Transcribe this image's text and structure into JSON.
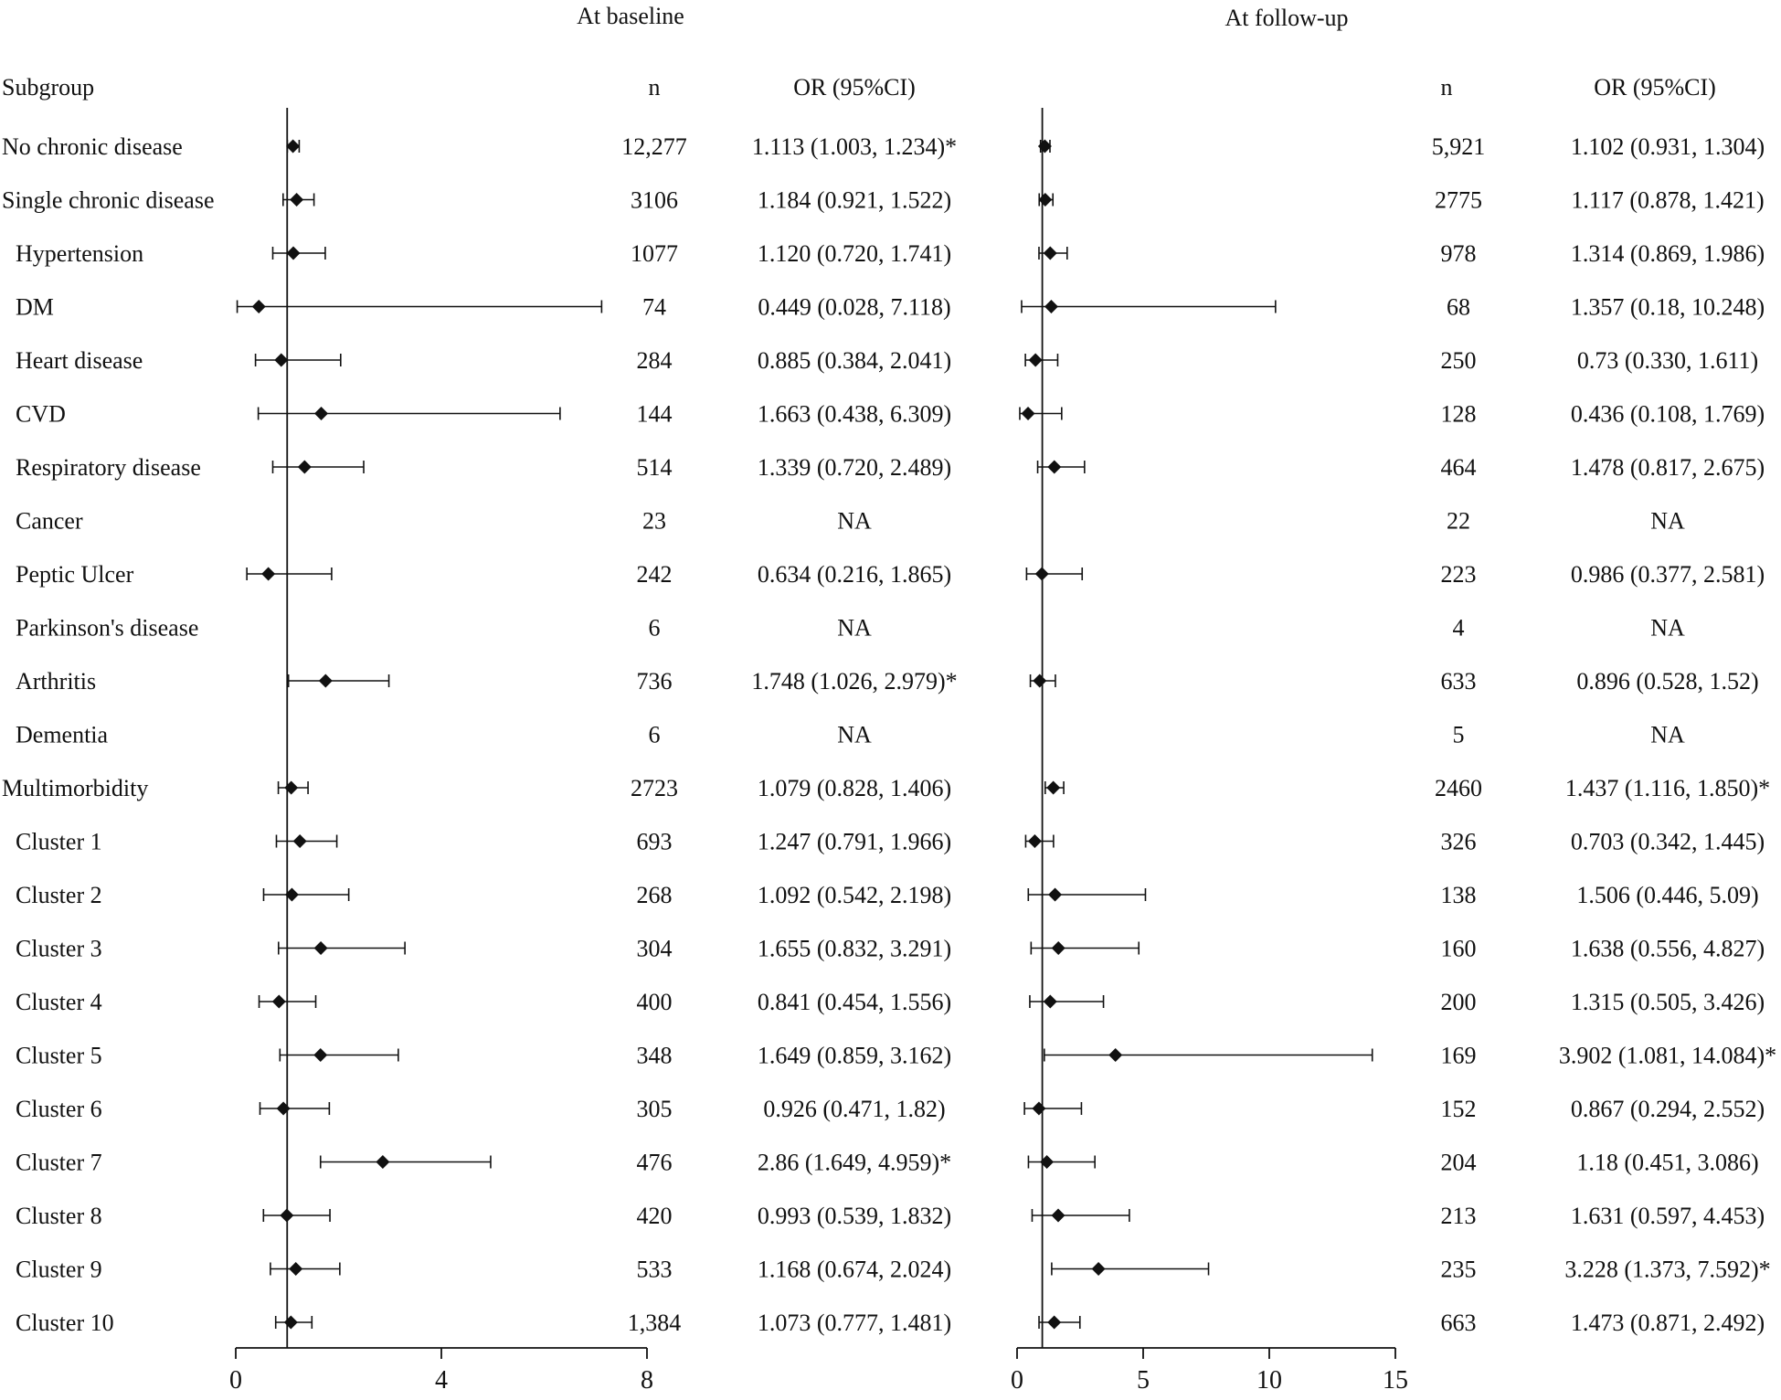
{
  "chart_data": {
    "type": "forest",
    "panels": [
      {
        "title": "At baseline",
        "n_header": "n",
        "or_header": "OR (95%CI)",
        "xlim": [
          0,
          8
        ],
        "ticks": [
          0,
          4,
          8
        ],
        "ref_line": 1
      },
      {
        "title": "At follow-up",
        "n_header": "n",
        "or_header": "OR (95%CI)",
        "xlim": [
          0,
          15
        ],
        "ticks": [
          0,
          5,
          10,
          15
        ],
        "ref_line": 1
      }
    ],
    "subgroup_header": "Subgroup",
    "rows": [
      {
        "label": "No chronic disease",
        "indent": false,
        "baseline": {
          "n": "12,277",
          "or_text": "1.113 (1.003, 1.234)*",
          "or": 1.113,
          "lo": 1.003,
          "hi": 1.234
        },
        "followup": {
          "n": "5,921",
          "or_text": "1.102 (0.931, 1.304)",
          "or": 1.102,
          "lo": 0.931,
          "hi": 1.304
        }
      },
      {
        "label": "Single chronic disease",
        "indent": false,
        "baseline": {
          "n": "3106",
          "or_text": "1.184 (0.921, 1.522)",
          "or": 1.184,
          "lo": 0.921,
          "hi": 1.522
        },
        "followup": {
          "n": "2775",
          "or_text": "1.117 (0.878, 1.421)",
          "or": 1.117,
          "lo": 0.878,
          "hi": 1.421
        }
      },
      {
        "label": "Hypertension",
        "indent": true,
        "baseline": {
          "n": "1077",
          "or_text": "1.120 (0.720, 1.741)",
          "or": 1.12,
          "lo": 0.72,
          "hi": 1.741
        },
        "followup": {
          "n": "978",
          "or_text": "1.314 (0.869, 1.986)",
          "or": 1.314,
          "lo": 0.869,
          "hi": 1.986
        }
      },
      {
        "label": "DM",
        "indent": true,
        "baseline": {
          "n": "74",
          "or_text": "0.449 (0.028, 7.118)",
          "or": 0.449,
          "lo": 0.028,
          "hi": 7.118
        },
        "followup": {
          "n": "68",
          "or_text": "1.357 (0.18, 10.248)",
          "or": 1.357,
          "lo": 0.18,
          "hi": 10.248
        }
      },
      {
        "label": "Heart disease",
        "indent": true,
        "baseline": {
          "n": "284",
          "or_text": "0.885 (0.384, 2.041)",
          "or": 0.885,
          "lo": 0.384,
          "hi": 2.041
        },
        "followup": {
          "n": "250",
          "or_text": "0.73 (0.330, 1.611)",
          "or": 0.73,
          "lo": 0.33,
          "hi": 1.611
        }
      },
      {
        "label": "CVD",
        "indent": true,
        "baseline": {
          "n": "144",
          "or_text": "1.663 (0.438, 6.309)",
          "or": 1.663,
          "lo": 0.438,
          "hi": 6.309
        },
        "followup": {
          "n": "128",
          "or_text": "0.436 (0.108, 1.769)",
          "or": 0.436,
          "lo": 0.108,
          "hi": 1.769
        }
      },
      {
        "label": "Respiratory disease",
        "indent": true,
        "baseline": {
          "n": "514",
          "or_text": "1.339 (0.720, 2.489)",
          "or": 1.339,
          "lo": 0.72,
          "hi": 2.489
        },
        "followup": {
          "n": "464",
          "or_text": "1.478 (0.817, 2.675)",
          "or": 1.478,
          "lo": 0.817,
          "hi": 2.675
        }
      },
      {
        "label": "Cancer",
        "indent": true,
        "baseline": {
          "n": "23",
          "or_text": "NA",
          "or": null,
          "lo": null,
          "hi": null
        },
        "followup": {
          "n": "22",
          "or_text": "NA",
          "or": null,
          "lo": null,
          "hi": null
        }
      },
      {
        "label": "Peptic Ulcer",
        "indent": true,
        "baseline": {
          "n": "242",
          "or_text": "0.634 (0.216, 1.865)",
          "or": 0.634,
          "lo": 0.216,
          "hi": 1.865
        },
        "followup": {
          "n": "223",
          "or_text": "0.986 (0.377, 2.581)",
          "or": 0.986,
          "lo": 0.377,
          "hi": 2.581
        }
      },
      {
        "label": "Parkinson's disease",
        "indent": true,
        "baseline": {
          "n": "6",
          "or_text": "NA",
          "or": null,
          "lo": null,
          "hi": null
        },
        "followup": {
          "n": "4",
          "or_text": "NA",
          "or": null,
          "lo": null,
          "hi": null
        }
      },
      {
        "label": "Arthritis",
        "indent": true,
        "baseline": {
          "n": "736",
          "or_text": "1.748 (1.026, 2.979)*",
          "or": 1.748,
          "lo": 1.026,
          "hi": 2.979
        },
        "followup": {
          "n": "633",
          "or_text": "0.896 (0.528, 1.52)",
          "or": 0.896,
          "lo": 0.528,
          "hi": 1.52
        }
      },
      {
        "label": "Dementia",
        "indent": true,
        "baseline": {
          "n": "6",
          "or_text": "NA",
          "or": null,
          "lo": null,
          "hi": null
        },
        "followup": {
          "n": "5",
          "or_text": "NA",
          "or": null,
          "lo": null,
          "hi": null
        }
      },
      {
        "label": "Multimorbidity",
        "indent": false,
        "baseline": {
          "n": "2723",
          "or_text": "1.079 (0.828, 1.406)",
          "or": 1.079,
          "lo": 0.828,
          "hi": 1.406
        },
        "followup": {
          "n": "2460",
          "or_text": "1.437 (1.116, 1.850)*",
          "or": 1.437,
          "lo": 1.116,
          "hi": 1.85
        }
      },
      {
        "label": "Cluster 1",
        "indent": true,
        "baseline": {
          "n": "693",
          "or_text": "1.247 (0.791, 1.966)",
          "or": 1.247,
          "lo": 0.791,
          "hi": 1.966
        },
        "followup": {
          "n": "326",
          "or_text": "0.703 (0.342, 1.445)",
          "or": 0.703,
          "lo": 0.342,
          "hi": 1.445
        }
      },
      {
        "label": "Cluster 2",
        "indent": true,
        "baseline": {
          "n": "268",
          "or_text": "1.092 (0.542, 2.198)",
          "or": 1.092,
          "lo": 0.542,
          "hi": 2.198
        },
        "followup": {
          "n": "138",
          "or_text": "1.506 (0.446, 5.09)",
          "or": 1.506,
          "lo": 0.446,
          "hi": 5.09
        }
      },
      {
        "label": "Cluster 3",
        "indent": true,
        "baseline": {
          "n": "304",
          "or_text": "1.655 (0.832, 3.291)",
          "or": 1.655,
          "lo": 0.832,
          "hi": 3.291
        },
        "followup": {
          "n": "160",
          "or_text": "1.638 (0.556, 4.827)",
          "or": 1.638,
          "lo": 0.556,
          "hi": 4.827
        }
      },
      {
        "label": "Cluster 4",
        "indent": true,
        "baseline": {
          "n": "400",
          "or_text": "0.841 (0.454, 1.556)",
          "or": 0.841,
          "lo": 0.454,
          "hi": 1.556
        },
        "followup": {
          "n": "200",
          "or_text": "1.315 (0.505, 3.426)",
          "or": 1.315,
          "lo": 0.505,
          "hi": 3.426
        }
      },
      {
        "label": "Cluster 5",
        "indent": true,
        "baseline": {
          "n": "348",
          "or_text": "1.649 (0.859, 3.162)",
          "or": 1.649,
          "lo": 0.859,
          "hi": 3.162
        },
        "followup": {
          "n": "169",
          "or_text": "3.902 (1.081, 14.084)*",
          "or": 3.902,
          "lo": 1.081,
          "hi": 14.084
        }
      },
      {
        "label": "Cluster 6",
        "indent": true,
        "baseline": {
          "n": "305",
          "or_text": "0.926 (0.471, 1.82)",
          "or": 0.926,
          "lo": 0.471,
          "hi": 1.82
        },
        "followup": {
          "n": "152",
          "or_text": "0.867 (0.294, 2.552)",
          "or": 0.867,
          "lo": 0.294,
          "hi": 2.552
        }
      },
      {
        "label": "Cluster 7",
        "indent": true,
        "baseline": {
          "n": "476",
          "or_text": "2.86 (1.649, 4.959)*",
          "or": 2.86,
          "lo": 1.649,
          "hi": 4.959
        },
        "followup": {
          "n": "204",
          "or_text": "1.18 (0.451, 3.086)",
          "or": 1.18,
          "lo": 0.451,
          "hi": 3.086
        }
      },
      {
        "label": "Cluster 8",
        "indent": true,
        "baseline": {
          "n": "420",
          "or_text": "0.993 (0.539, 1.832)",
          "or": 0.993,
          "lo": 0.539,
          "hi": 1.832
        },
        "followup": {
          "n": "213",
          "or_text": "1.631 (0.597, 4.453)",
          "or": 1.631,
          "lo": 0.597,
          "hi": 4.453
        }
      },
      {
        "label": "Cluster 9",
        "indent": true,
        "baseline": {
          "n": "533",
          "or_text": "1.168 (0.674, 2.024)",
          "or": 1.168,
          "lo": 0.674,
          "hi": 2.024
        },
        "followup": {
          "n": "235",
          "or_text": "3.228 (1.373, 7.592)*",
          "or": 3.228,
          "lo": 1.373,
          "hi": 7.592
        }
      },
      {
        "label": "Cluster 10",
        "indent": true,
        "baseline": {
          "n": "1,384",
          "or_text": "1.073 (0.777, 1.481)",
          "or": 1.073,
          "lo": 0.777,
          "hi": 1.481
        },
        "followup": {
          "n": "663",
          "or_text": "1.473 (0.871, 2.492)",
          "or": 1.473,
          "lo": 0.871,
          "hi": 2.492
        }
      }
    ]
  }
}
